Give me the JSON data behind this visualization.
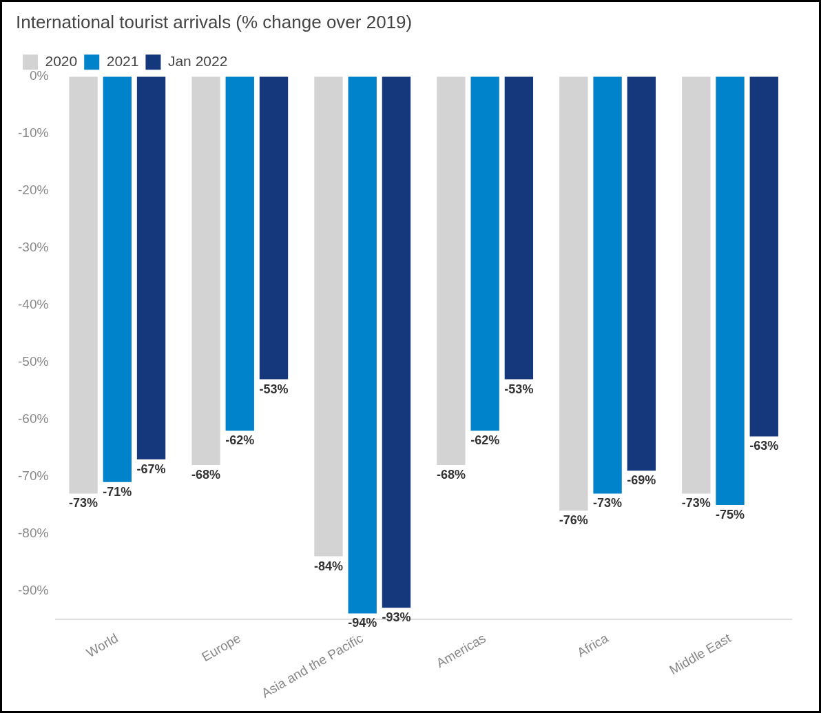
{
  "chart_data": {
    "type": "bar",
    "title": "International tourist arrivals (% change over 2019)",
    "categories": [
      "World",
      "Europe",
      "Asia and the Pacific",
      "Americas",
      "Africa",
      "Middle East"
    ],
    "series": [
      {
        "name": "2020",
        "color": "#d3d3d3",
        "values": [
          -73,
          -68,
          -84,
          -68,
          -76,
          -73
        ],
        "value_labels": [
          "-73%",
          "-68%",
          "-84%",
          "-68%",
          "-76%",
          "-73%"
        ]
      },
      {
        "name": "2021",
        "color": "#0083cb",
        "values": [
          -71,
          -62,
          -94,
          -62,
          -73,
          -75
        ],
        "value_labels": [
          "-71%",
          "-62%",
          "-94%",
          "-62%",
          "-73%",
          "-75%"
        ]
      },
      {
        "name": "Jan 2022",
        "color": "#15377c",
        "values": [
          -67,
          -53,
          -93,
          -53,
          -69,
          -63
        ],
        "value_labels": [
          "-67%",
          "-53%",
          "-93%",
          "-53%",
          "-69%",
          "-63%"
        ]
      }
    ],
    "ylim": [
      -95,
      0
    ],
    "yticks": [
      {
        "value": 0,
        "label": "0%"
      },
      {
        "value": -10,
        "label": "-10%"
      },
      {
        "value": -20,
        "label": "-20%"
      },
      {
        "value": -30,
        "label": "-30%"
      },
      {
        "value": -40,
        "label": "-40%"
      },
      {
        "value": -50,
        "label": "-50%"
      },
      {
        "value": -60,
        "label": "-60%"
      },
      {
        "value": -70,
        "label": "-70%"
      },
      {
        "value": -80,
        "label": "-80%"
      },
      {
        "value": -90,
        "label": "-90%"
      }
    ],
    "grid": false,
    "legend": "top left"
  }
}
